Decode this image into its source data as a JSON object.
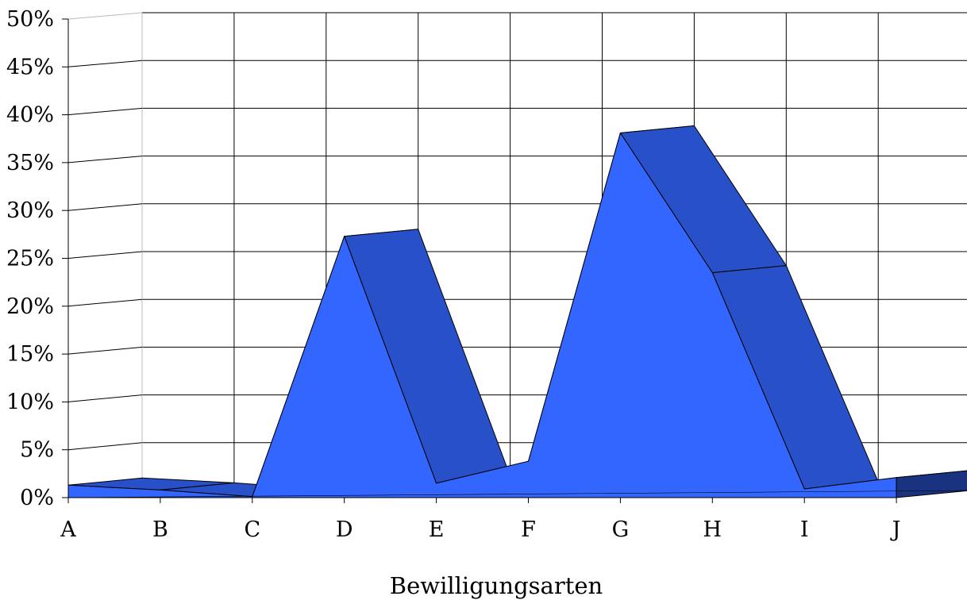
{
  "chart_data": {
    "type": "area",
    "style": "3d",
    "categories": [
      "A",
      "B",
      "C",
      "D",
      "E",
      "F",
      "G",
      "H",
      "I",
      "J"
    ],
    "values": [
      1.3,
      0.8,
      0.1,
      27.3,
      1.5,
      3.8,
      38.1,
      23.5,
      0.9,
      2.1
    ],
    "xlabel": "Bewilligungsarten",
    "ylabel": "",
    "ylim": [
      0,
      50
    ],
    "yticks": [
      "0%",
      "5%",
      "10%",
      "15%",
      "20%",
      "25%",
      "30%",
      "35%",
      "40%",
      "45%",
      "50%"
    ],
    "grid": true,
    "legend": "none",
    "colors": {
      "front": "#3366ff",
      "top": "#2850c8",
      "end": "#1a3380"
    }
  }
}
